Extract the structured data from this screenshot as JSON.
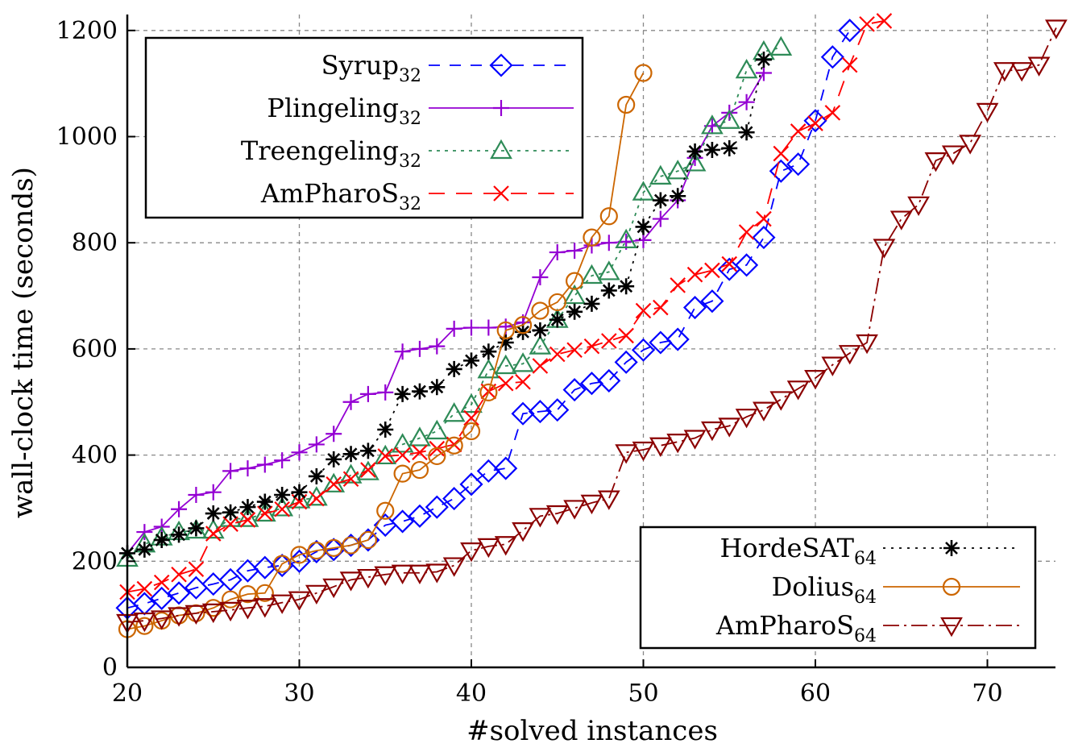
{
  "chart_data": {
    "type": "line",
    "title": "",
    "xlabel": "#solved instances",
    "ylabel": "wall-clock time (seconds)",
    "xlim": [
      20,
      74
    ],
    "ylim": [
      0,
      1220
    ],
    "x_ticks": [
      20,
      30,
      40,
      50,
      60,
      70
    ],
    "y_ticks": [
      0,
      200,
      400,
      600,
      800,
      1000,
      1200
    ],
    "grid": true,
    "legends": [
      {
        "placement": "top-left",
        "entries": [
          "Syrup32",
          "Plingeling32",
          "Treengeling32",
          "AmPharoS32"
        ]
      },
      {
        "placement": "bottom-right",
        "entries": [
          "HordeSAT64",
          "Dolius64",
          "AmPharoS64"
        ]
      }
    ],
    "series": [
      {
        "name": "Syrup32",
        "color": "#0000ff",
        "marker": "diamond",
        "dash": "14 12",
        "x": [
          20,
          21,
          22,
          23,
          24,
          25,
          26,
          27,
          28,
          29,
          30,
          31,
          32,
          33,
          34,
          35,
          36,
          37,
          38,
          39,
          40,
          41,
          42,
          43,
          44,
          45,
          46,
          47,
          48,
          49,
          50,
          51,
          52,
          53,
          54,
          55,
          56,
          57,
          58,
          59,
          60,
          61,
          62
        ],
        "y": [
          112,
          120,
          130,
          140,
          150,
          157,
          165,
          182,
          188,
          192,
          200,
          218,
          222,
          230,
          240,
          268,
          275,
          285,
          302,
          318,
          345,
          370,
          375,
          478,
          482,
          485,
          523,
          535,
          540,
          575,
          598,
          612,
          618,
          678,
          690,
          750,
          758,
          810,
          935,
          948,
          1030,
          1150,
          1200
        ]
      },
      {
        "name": "Plingeling32",
        "color": "#9400d3",
        "marker": "plus",
        "dash": "",
        "x": [
          20,
          21,
          22,
          23,
          24,
          25,
          26,
          27,
          28,
          29,
          30,
          31,
          32,
          33,
          34,
          35,
          36,
          37,
          38,
          39,
          40,
          41,
          42,
          43,
          44,
          45,
          46,
          47,
          48,
          49,
          50,
          51,
          52,
          53,
          54,
          55,
          56,
          57
        ],
        "y": [
          215,
          255,
          265,
          298,
          325,
          330,
          370,
          375,
          382,
          390,
          405,
          420,
          440,
          500,
          515,
          518,
          595,
          600,
          605,
          638,
          640,
          640,
          642,
          650,
          735,
          782,
          785,
          795,
          800,
          802,
          805,
          845,
          880,
          960,
          1020,
          1045,
          1065,
          1120
        ]
      },
      {
        "name": "Treengeling32",
        "color": "#2e8b57",
        "marker": "triangle-up",
        "dash": "4 6",
        "x": [
          20,
          21,
          22,
          23,
          24,
          25,
          26,
          27,
          28,
          29,
          30,
          31,
          32,
          33,
          34,
          35,
          36,
          37,
          38,
          39,
          40,
          41,
          42,
          43,
          44,
          45,
          46,
          47,
          48,
          49,
          50,
          51,
          52,
          53,
          54,
          55,
          56,
          57,
          58
        ],
        "y": [
          205,
          232,
          245,
          255,
          258,
          258,
          280,
          280,
          290,
          300,
          315,
          320,
          345,
          362,
          368,
          398,
          420,
          432,
          445,
          478,
          495,
          560,
          568,
          572,
          605,
          655,
          700,
          738,
          745,
          805,
          895,
          925,
          935,
          950,
          1020,
          1030,
          1125,
          1160,
          1168
        ]
      },
      {
        "name": "AmPharoS32",
        "color": "#ff0000",
        "marker": "x",
        "dash": "20 14",
        "x": [
          20,
          21,
          22,
          23,
          24,
          25,
          26,
          27,
          28,
          29,
          30,
          31,
          32,
          33,
          34,
          35,
          36,
          37,
          38,
          39,
          40,
          41,
          42,
          43,
          44,
          45,
          46,
          47,
          48,
          49,
          50,
          51,
          52,
          53,
          54,
          55,
          56,
          57,
          58,
          59,
          60,
          61,
          62,
          63,
          64
        ],
        "y": [
          142,
          148,
          160,
          175,
          185,
          252,
          270,
          278,
          290,
          298,
          312,
          318,
          345,
          355,
          372,
          398,
          400,
          405,
          412,
          420,
          470,
          520,
          535,
          538,
          568,
          590,
          598,
          605,
          615,
          625,
          672,
          678,
          720,
          740,
          748,
          760,
          820,
          845,
          968,
          1010,
          1025,
          1045,
          1135,
          1212,
          1218
        ]
      },
      {
        "name": "HordeSAT64",
        "color": "#000000",
        "marker": "asterisk",
        "dash": "3 7",
        "x": [
          20,
          21,
          22,
          23,
          24,
          25,
          26,
          27,
          28,
          29,
          30,
          31,
          32,
          33,
          34,
          35,
          36,
          37,
          38,
          39,
          40,
          41,
          42,
          43,
          44,
          45,
          46,
          47,
          48,
          49,
          50,
          51,
          52,
          53,
          54,
          55,
          56,
          57
        ],
        "y": [
          215,
          222,
          240,
          250,
          262,
          290,
          292,
          302,
          312,
          325,
          330,
          360,
          392,
          402,
          408,
          448,
          515,
          520,
          528,
          562,
          578,
          595,
          612,
          632,
          635,
          655,
          670,
          685,
          710,
          718,
          830,
          880,
          888,
          972,
          975,
          978,
          1008,
          1145
        ]
      },
      {
        "name": "Dolius64",
        "color": "#cc6600",
        "marker": "circle",
        "dash": "",
        "x": [
          20,
          21,
          22,
          23,
          24,
          25,
          26,
          27,
          28,
          29,
          30,
          31,
          32,
          33,
          34,
          35,
          36,
          37,
          38,
          39,
          40,
          41,
          42,
          43,
          44,
          45,
          46,
          47,
          48,
          49,
          50
        ],
        "y": [
          72,
          78,
          88,
          98,
          102,
          112,
          128,
          138,
          140,
          195,
          212,
          220,
          225,
          230,
          240,
          295,
          365,
          372,
          398,
          418,
          445,
          518,
          635,
          645,
          672,
          688,
          728,
          810,
          850,
          1060,
          1120
        ]
      },
      {
        "name": "AmPharoS64",
        "color": "#8b0000",
        "marker": "triangle-down",
        "dash": "20 6 3 6",
        "x": [
          20,
          21,
          22,
          23,
          24,
          25,
          26,
          27,
          28,
          29,
          30,
          31,
          32,
          33,
          34,
          35,
          36,
          37,
          38,
          39,
          40,
          41,
          42,
          43,
          44,
          45,
          46,
          47,
          48,
          49,
          50,
          51,
          52,
          53,
          54,
          55,
          56,
          57,
          58,
          59,
          60,
          61,
          62,
          63,
          64,
          65,
          66,
          67,
          68,
          69,
          70,
          71,
          72,
          73,
          74
        ],
        "y": [
          85,
          88,
          92,
          98,
          102,
          105,
          108,
          112,
          115,
          122,
          128,
          140,
          152,
          165,
          170,
          175,
          178,
          178,
          180,
          192,
          220,
          228,
          232,
          258,
          285,
          290,
          300,
          310,
          318,
          405,
          410,
          418,
          425,
          432,
          448,
          455,
          472,
          485,
          505,
          525,
          545,
          570,
          592,
          612,
          792,
          845,
          872,
          955,
          968,
          988,
          1048,
          1125,
          1125,
          1135,
          1205
        ]
      }
    ]
  }
}
